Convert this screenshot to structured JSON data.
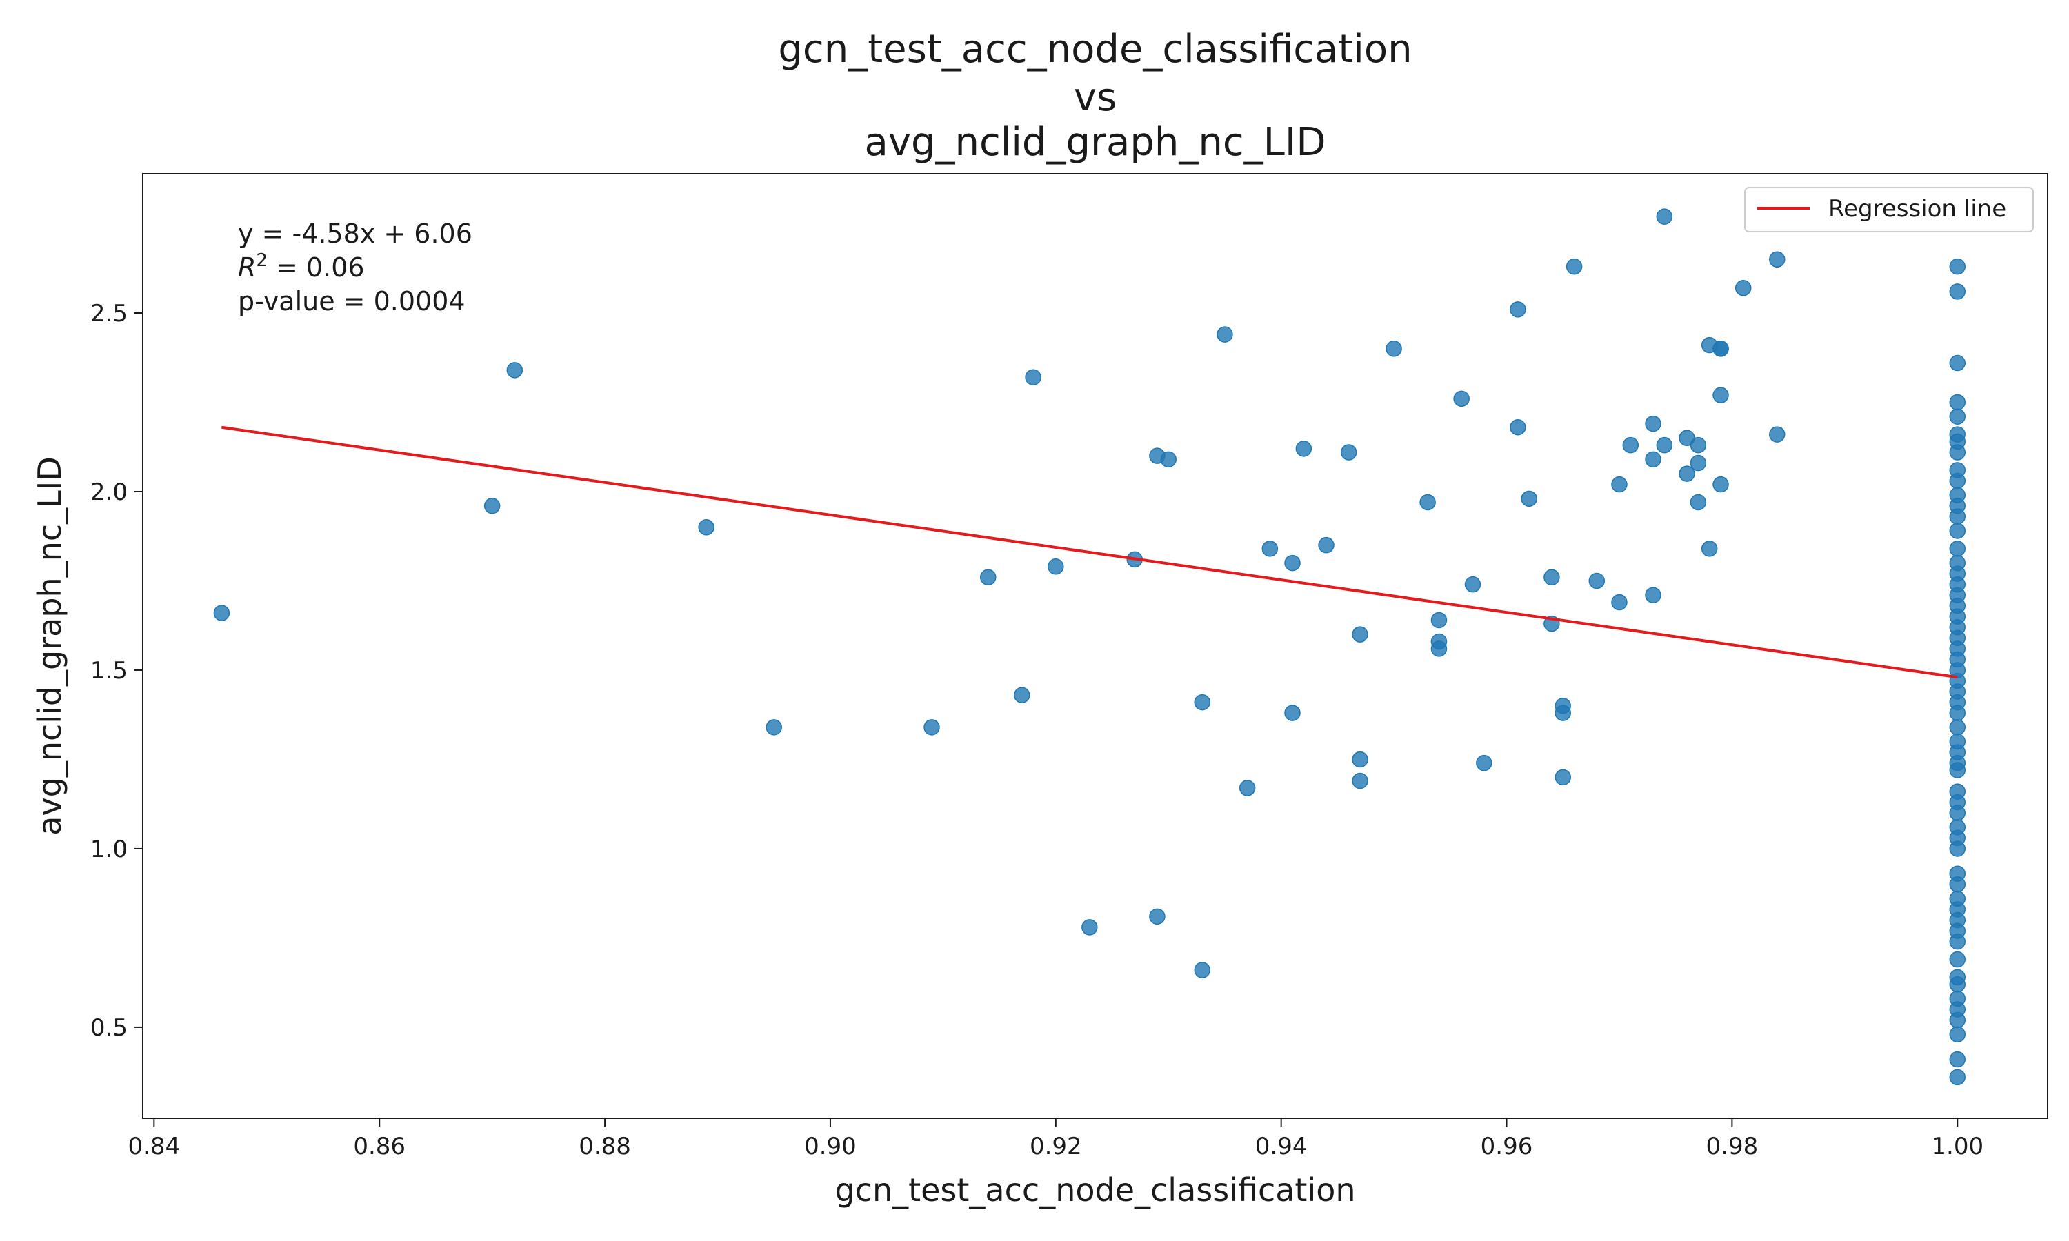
{
  "chart_data": {
    "type": "scatter",
    "title_lines": [
      "gcn_test_acc_node_classification",
      "vs",
      "avg_nclid_graph_nc_LID"
    ],
    "xlabel": "gcn_test_acc_node_classification",
    "ylabel": "avg_nclid_graph_nc_LID",
    "xlim": [
      0.839,
      1.008
    ],
    "ylim": [
      0.245,
      2.89
    ],
    "x_ticks": [
      0.84,
      0.86,
      0.88,
      0.9,
      0.92,
      0.94,
      0.96,
      0.98,
      1.0
    ],
    "x_tick_labels": [
      "0.84",
      "0.86",
      "0.88",
      "0.90",
      "0.92",
      "0.94",
      "0.96",
      "0.98",
      "1.00"
    ],
    "y_ticks": [
      0.5,
      1.0,
      1.5,
      2.0,
      2.5
    ],
    "y_tick_labels": [
      "0.5",
      "1.0",
      "1.5",
      "2.0",
      "2.5"
    ],
    "grid": false,
    "point_color": "#1f77b4",
    "line_color": "#e41a1c",
    "legend": {
      "position": "top-right",
      "entries": [
        "Regression line"
      ]
    },
    "annotation": {
      "equation": "y = -4.58x + 6.06",
      "r2_prefix": "R",
      "r2_sup": "2",
      "r2_rest": " = 0.06",
      "pvalue": "p-value = 0.0004"
    },
    "regression": {
      "slope": -4.58,
      "intercept": 6.06,
      "x_start": 0.846,
      "x_end": 1.0,
      "y_start": 2.18,
      "y_end": 1.48
    },
    "points": [
      [
        0.846,
        1.66
      ],
      [
        0.87,
        1.96
      ],
      [
        0.872,
        2.34
      ],
      [
        0.889,
        1.9
      ],
      [
        0.895,
        1.34
      ],
      [
        0.909,
        1.34
      ],
      [
        0.914,
        1.76
      ],
      [
        0.917,
        1.43
      ],
      [
        0.918,
        2.32
      ],
      [
        0.92,
        1.79
      ],
      [
        0.923,
        0.78
      ],
      [
        0.927,
        1.81
      ],
      [
        0.929,
        2.1
      ],
      [
        0.929,
        0.81
      ],
      [
        0.93,
        2.09
      ],
      [
        0.933,
        1.41
      ],
      [
        0.933,
        0.66
      ],
      [
        0.935,
        2.44
      ],
      [
        0.937,
        1.17
      ],
      [
        0.939,
        1.84
      ],
      [
        0.941,
        1.8
      ],
      [
        0.941,
        1.38
      ],
      [
        0.942,
        2.12
      ],
      [
        0.944,
        1.85
      ],
      [
        0.946,
        2.11
      ],
      [
        0.947,
        1.6
      ],
      [
        0.947,
        1.25
      ],
      [
        0.947,
        1.19
      ],
      [
        0.95,
        2.4
      ],
      [
        0.953,
        1.97
      ],
      [
        0.954,
        1.64
      ],
      [
        0.954,
        1.58
      ],
      [
        0.954,
        1.56
      ],
      [
        0.956,
        2.26
      ],
      [
        0.957,
        1.74
      ],
      [
        0.958,
        1.24
      ],
      [
        0.961,
        2.51
      ],
      [
        0.961,
        2.18
      ],
      [
        0.962,
        1.98
      ],
      [
        0.964,
        1.76
      ],
      [
        0.964,
        1.63
      ],
      [
        0.965,
        1.4
      ],
      [
        0.965,
        1.38
      ],
      [
        0.965,
        1.2
      ],
      [
        0.966,
        2.63
      ],
      [
        0.968,
        1.75
      ],
      [
        0.97,
        2.02
      ],
      [
        0.97,
        1.69
      ],
      [
        0.971,
        2.13
      ],
      [
        0.973,
        2.19
      ],
      [
        0.973,
        2.09
      ],
      [
        0.973,
        1.71
      ],
      [
        0.974,
        2.77
      ],
      [
        0.974,
        2.13
      ],
      [
        0.976,
        2.15
      ],
      [
        0.976,
        2.05
      ],
      [
        0.977,
        2.13
      ],
      [
        0.977,
        2.08
      ],
      [
        0.977,
        1.97
      ],
      [
        0.978,
        2.41
      ],
      [
        0.978,
        1.84
      ],
      [
        0.979,
        2.4
      ],
      [
        0.979,
        2.27
      ],
      [
        0.979,
        2.02
      ],
      [
        0.979,
        2.4
      ],
      [
        0.981,
        2.57
      ],
      [
        0.984,
        2.65
      ],
      [
        0.984,
        2.16
      ],
      [
        1.0,
        2.63
      ],
      [
        1.0,
        2.56
      ],
      [
        1.0,
        2.36
      ],
      [
        1.0,
        2.25
      ],
      [
        1.0,
        2.21
      ],
      [
        1.0,
        2.16
      ],
      [
        1.0,
        2.14
      ],
      [
        1.0,
        2.11
      ],
      [
        1.0,
        2.06
      ],
      [
        1.0,
        2.03
      ],
      [
        1.0,
        1.99
      ],
      [
        1.0,
        1.96
      ],
      [
        1.0,
        1.93
      ],
      [
        1.0,
        1.89
      ],
      [
        1.0,
        1.84
      ],
      [
        1.0,
        1.8
      ],
      [
        1.0,
        1.77
      ],
      [
        1.0,
        1.74
      ],
      [
        1.0,
        1.71
      ],
      [
        1.0,
        1.68
      ],
      [
        1.0,
        1.65
      ],
      [
        1.0,
        1.62
      ],
      [
        1.0,
        1.59
      ],
      [
        1.0,
        1.56
      ],
      [
        1.0,
        1.53
      ],
      [
        1.0,
        1.5
      ],
      [
        1.0,
        1.47
      ],
      [
        1.0,
        1.44
      ],
      [
        1.0,
        1.41
      ],
      [
        1.0,
        1.38
      ],
      [
        1.0,
        1.34
      ],
      [
        1.0,
        1.3
      ],
      [
        1.0,
        1.27
      ],
      [
        1.0,
        1.24
      ],
      [
        1.0,
        1.22
      ],
      [
        1.0,
        1.16
      ],
      [
        1.0,
        1.13
      ],
      [
        1.0,
        1.1
      ],
      [
        1.0,
        1.06
      ],
      [
        1.0,
        1.03
      ],
      [
        1.0,
        1.0
      ],
      [
        1.0,
        0.93
      ],
      [
        1.0,
        0.9
      ],
      [
        1.0,
        0.86
      ],
      [
        1.0,
        0.83
      ],
      [
        1.0,
        0.8
      ],
      [
        1.0,
        0.77
      ],
      [
        1.0,
        0.74
      ],
      [
        1.0,
        0.69
      ],
      [
        1.0,
        0.64
      ],
      [
        1.0,
        0.62
      ],
      [
        1.0,
        0.58
      ],
      [
        1.0,
        0.55
      ],
      [
        1.0,
        0.52
      ],
      [
        1.0,
        0.48
      ],
      [
        1.0,
        0.41
      ],
      [
        1.0,
        0.36
      ]
    ]
  }
}
